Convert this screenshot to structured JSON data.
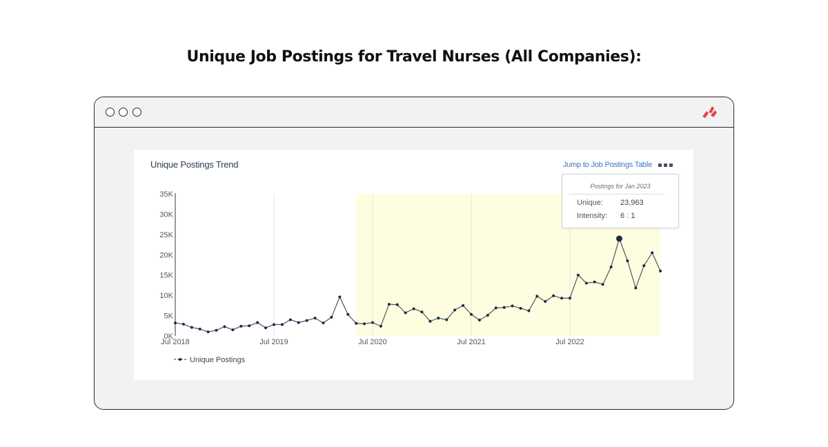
{
  "page": {
    "heading": "Unique Job Postings for Travel Nurses (All Companies):"
  },
  "window": {
    "brand_icon": "red-chevron-logo-icon"
  },
  "card": {
    "title": "Unique Postings Trend",
    "jump_link": "Jump to Job Postings Table",
    "more_icon": "three-squares-menu-icon"
  },
  "tooltip": {
    "title": "Postings for Jan 2023",
    "unique_label": "Unique:",
    "unique_value": "23,963",
    "intensity_label": "Intensity:",
    "intensity_value": "6 : 1"
  },
  "chart_data": {
    "type": "line",
    "x_tick_labels": [
      "Jul 2018",
      "Jul 2019",
      "Jul 2020",
      "Jul 2021",
      "Jul 2022"
    ],
    "y_tick_labels": [
      "0K",
      "5K",
      "10K",
      "15K",
      "20K",
      "25K",
      "30K",
      "35K"
    ],
    "ylim": [
      0,
      35000
    ],
    "x_start": "Jul 2018",
    "highlight_range": [
      "May 2020",
      "Jun 2023"
    ],
    "highlight_color": "#fefde0",
    "line_color": "#4d5560",
    "marker_color": "#1b2a4a",
    "series": [
      {
        "name": "Unique Postings",
        "values": [
          3200,
          2900,
          2100,
          1700,
          1000,
          1400,
          2300,
          1500,
          2400,
          2500,
          3300,
          2000,
          2800,
          2800,
          4000,
          3300,
          3800,
          4400,
          3200,
          4600,
          9600,
          5300,
          3100,
          3000,
          3300,
          2400,
          7800,
          7700,
          5700,
          6700,
          5900,
          3600,
          4400,
          4000,
          6400,
          7500,
          5300,
          3900,
          5100,
          6900,
          7000,
          7400,
          6800,
          6200,
          9800,
          8500,
          9900,
          9300,
          9300,
          15000,
          13000,
          13300,
          12700,
          17000,
          23963,
          18500,
          11800,
          17300,
          20500,
          16000
        ]
      }
    ],
    "highlighted_point": {
      "month": "Jan 2023",
      "value": 23963
    },
    "legend_position": "bottom-left",
    "grid": "vertical lines at Jul ticks"
  }
}
